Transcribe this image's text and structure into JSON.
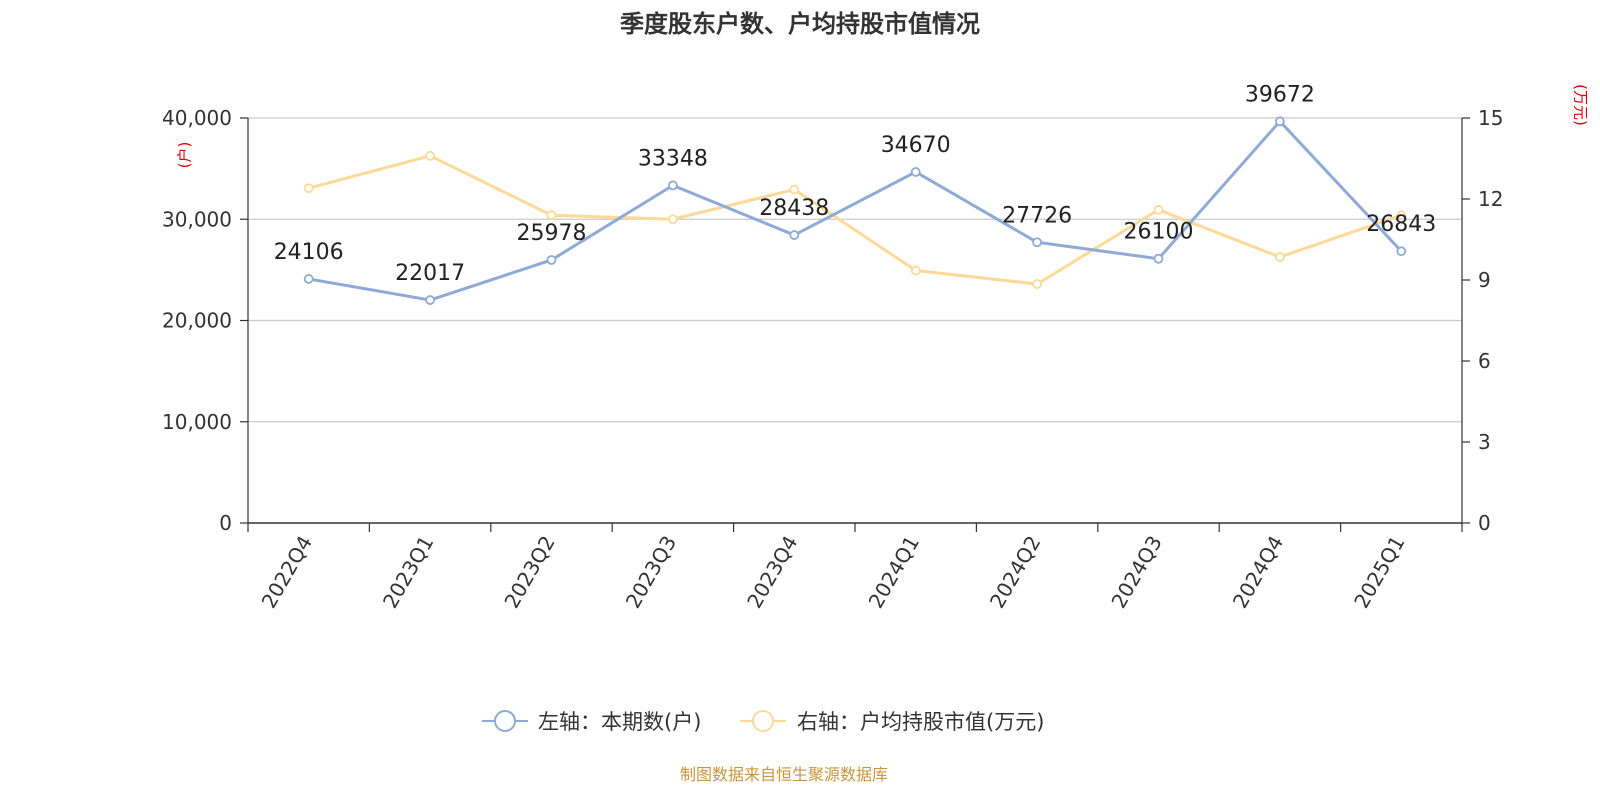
{
  "chart_data": {
    "type": "line",
    "title": "季度股东户数、户均持股市值情况",
    "categories": [
      "2022Q4",
      "2023Q1",
      "2023Q2",
      "2023Q3",
      "2023Q4",
      "2024Q1",
      "2024Q2",
      "2024Q3",
      "2024Q4",
      "2025Q1"
    ],
    "left_axis": {
      "unit": "(户)",
      "range": [
        0,
        40000
      ],
      "ticks": [
        0,
        10000,
        20000,
        30000,
        40000
      ],
      "tick_labels": [
        "0",
        "10,000",
        "20,000",
        "30,000",
        "40,000"
      ]
    },
    "right_axis": {
      "unit": "(万元)",
      "range": [
        0,
        15
      ],
      "ticks": [
        0,
        3,
        6,
        9,
        12,
        15
      ],
      "tick_labels": [
        "0",
        "3",
        "6",
        "9",
        "12",
        "15"
      ]
    },
    "series": [
      {
        "name": "左轴：本期数(户)",
        "axis": "left",
        "color": "#8eaad6",
        "values": [
          24106,
          22017,
          25978,
          33348,
          28438,
          34670,
          27726,
          26100,
          39672,
          26843
        ],
        "labels": [
          "24106",
          "22017",
          "25978",
          "33348",
          "28438",
          "34670",
          "27726",
          "26100",
          "39672",
          "26843"
        ]
      },
      {
        "name": "右轴：户均持股市值(万元)",
        "axis": "right",
        "color": "#fdd99a",
        "values": [
          12.4,
          13.6,
          11.4,
          11.25,
          12.35,
          9.35,
          8.85,
          11.6,
          9.85,
          11.4
        ]
      }
    ],
    "grid": true,
    "legend_position": "bottom-center"
  },
  "source": "制图数据来自恒生聚源数据库"
}
